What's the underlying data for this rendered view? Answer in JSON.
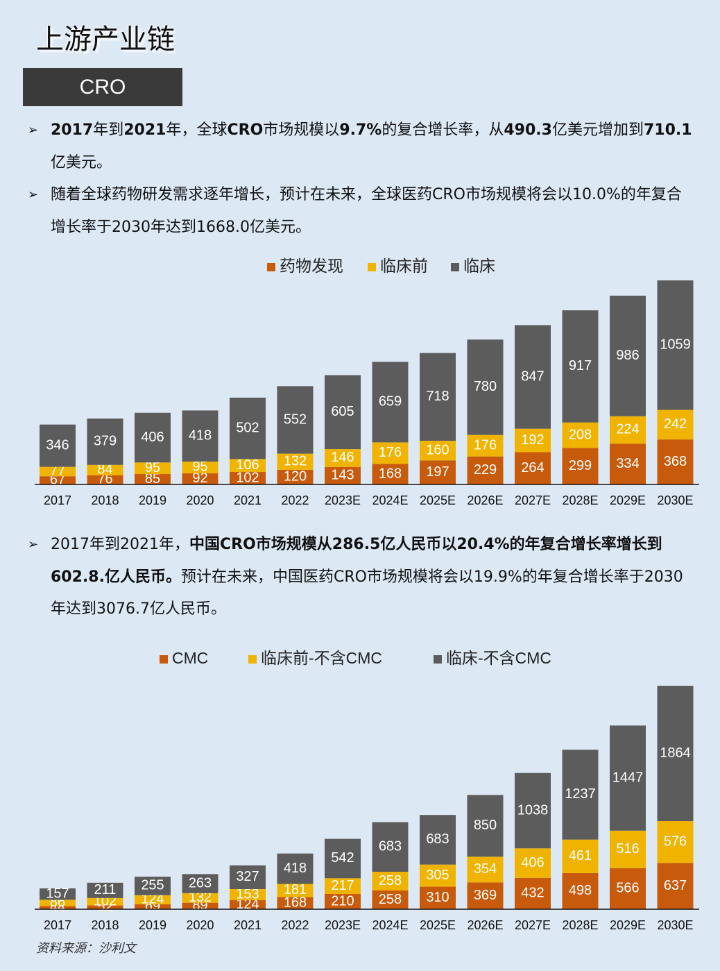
{
  "title": "上游产业链",
  "section": "CRO",
  "bullets": [
    [
      {
        "text": "2017",
        "bold": true
      },
      {
        "text": "年到",
        "bold": false
      },
      {
        "text": "2021",
        "bold": true
      },
      {
        "text": "年，全球",
        "bold": false
      },
      {
        "text": "CRO",
        "bold": true
      },
      {
        "text": "市场规模以",
        "bold": false
      },
      {
        "text": "9.7%",
        "bold": true
      },
      {
        "text": "的复合增长率，从",
        "bold": false
      },
      {
        "text": "490.3",
        "bold": true
      },
      {
        "text": "亿美元增加到",
        "bold": false
      },
      {
        "text": "710.1",
        "bold": true
      },
      {
        "text": "亿美元。",
        "bold": false
      }
    ],
    [
      {
        "text": "随着全球药物研发需求逐年增长，预计在未来，全球医药CRO市场规模将会以10.0%的年复合增长率于2030年达到1668.0亿美元。",
        "bold": false
      }
    ],
    [
      {
        "text": "2017年到2021年，",
        "bold": false
      },
      {
        "text": "中国CRO市场规模从286.5亿人民币以20.4%的年复合增长率增长到602.8.亿人民币。",
        "bold": true
      },
      {
        "text": "预计在未来，中国医药CRO市场规模将会以19.9%的年复合增长率于2030年达到3076.7亿人民币。",
        "bold": false
      }
    ]
  ],
  "chart_data": [
    {
      "type": "stacked_bar",
      "categories": [
        "2017",
        "2018",
        "2019",
        "2020",
        "2021",
        "2022",
        "2023E",
        "2024E",
        "2025E",
        "2026E",
        "2027E",
        "2028E",
        "2029E",
        "2030E"
      ],
      "series": [
        {
          "name": "药物发现",
          "color": "#c85a0c",
          "values": [
            67,
            76,
            85,
            92,
            102,
            120,
            143,
            168,
            197,
            229,
            264,
            299,
            334,
            368
          ]
        },
        {
          "name": "临床前",
          "color": "#f0b400",
          "values": [
            77,
            84,
            95,
            95,
            106,
            132,
            146,
            176,
            160,
            176,
            192,
            208,
            224,
            242
          ]
        },
        {
          "name": "临床",
          "color": "#5c5c5c",
          "values": [
            346,
            379,
            406,
            418,
            502,
            552,
            605,
            659,
            718,
            780,
            847,
            917,
            986,
            1059
          ]
        }
      ],
      "ylim": [
        0,
        1700
      ]
    },
    {
      "type": "stacked_bar",
      "categories": [
        "2017",
        "2018",
        "2019",
        "2020",
        "2021",
        "2022",
        "2023E",
        "2024E",
        "2025E",
        "2026E",
        "2027E",
        "2028E",
        "2029E",
        "2030E"
      ],
      "series": [
        {
          "name": "CMC",
          "color": "#c85a0c",
          "values": [
            44,
            52,
            69,
            89,
            124,
            168,
            210,
            258,
            310,
            369,
            432,
            498,
            566,
            637
          ]
        },
        {
          "name": "临床前-不含CMC",
          "color": "#f0b400",
          "values": [
            86,
            102,
            124,
            132,
            153,
            181,
            217,
            258,
            305,
            354,
            406,
            461,
            516,
            576
          ]
        },
        {
          "name": "临床-不含CMC",
          "color": "#5c5c5c",
          "values": [
            157,
            211,
            255,
            263,
            327,
            418,
            542,
            683,
            683,
            850,
            1038,
            1237,
            1447,
            1864
          ]
        }
      ],
      "ylim": [
        0,
        3100
      ]
    }
  ],
  "source": "资料来源：沙利文"
}
